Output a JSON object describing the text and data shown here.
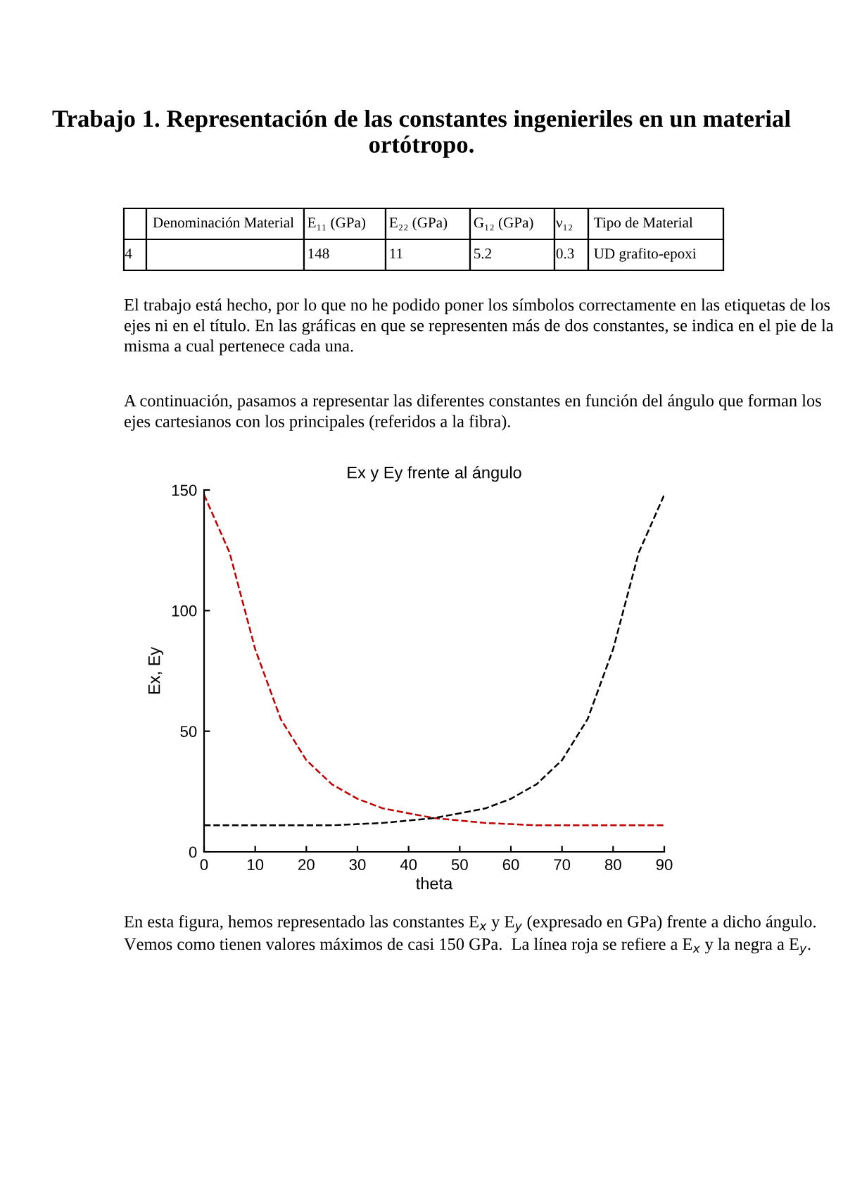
{
  "chart_data": {
    "type": "line",
    "title": "Ex y Ey frente al ángulo",
    "xlabel": "theta",
    "ylabel": "Ex, Ey",
    "annotations": [
      "Trabajo 1. Representación de las constantes ingenieriles en un material ortótropo.",
      null,
      "Denominación Material",
      "E₁₁ (GPa)",
      "E₂₂ (GPa)",
      "G₁₂ (GPa)",
      "ν₁₂",
      "Tipo de Material",
      "4",
      null,
      "148",
      "11",
      "5.2",
      "0.3",
      "UD grafito-epoxi",
      "El trabajo está hecho, por lo que no he podido poner los símbolos correctamente en las etiquetas de los ejes ni en el título. En las gráficas en que se representen más de dos constantes, se indica en el pie de la misma a cual pertenece cada una.",
      "A continuación, pasamos a representar las diferentes constantes en función del ángulo que forman los ejes cartesianos con los principales (referidos a la fibra).",
      "En esta figura, hemos representado las constantes E$_{x}$ y E$_{y}$ (expresado en GPa) frente a dicho ángulo. Vemos como tienen valores máximos de casi 150 GPa.  La línea roja se refiere a E$_{x}$ y la negra a E$_{y}$."
    ],
    "x": [
      0,
      5,
      10,
      15,
      20,
      25,
      30,
      35,
      40,
      45,
      50,
      55,
      60,
      65,
      70,
      75,
      80,
      85,
      90
    ],
    "series": [
      {
        "color": "#c00000",
        "values": [
          148,
          124,
          84,
          55,
          38,
          28,
          22,
          18,
          16,
          14,
          13,
          12,
          11.5,
          11,
          11,
          11,
          11,
          11,
          11
        ]
      },
      {
        "color": "#000000",
        "values": [
          11,
          11,
          11,
          11,
          11,
          11,
          11.5,
          12,
          13,
          14,
          16,
          18,
          22,
          28,
          38,
          55,
          84,
          124,
          148
        ]
      }
    ],
    "xlim": [
      0,
      90
    ],
    "xticks": [
      0,
      10,
      20,
      30,
      40,
      50,
      60,
      70,
      80,
      90
    ],
    "ylim": [
      0,
      150
    ],
    "yticks": [
      0,
      50,
      100,
      150
    ],
    "line_style": "dashed",
    "grid": false,
    "legend": false
  }
}
